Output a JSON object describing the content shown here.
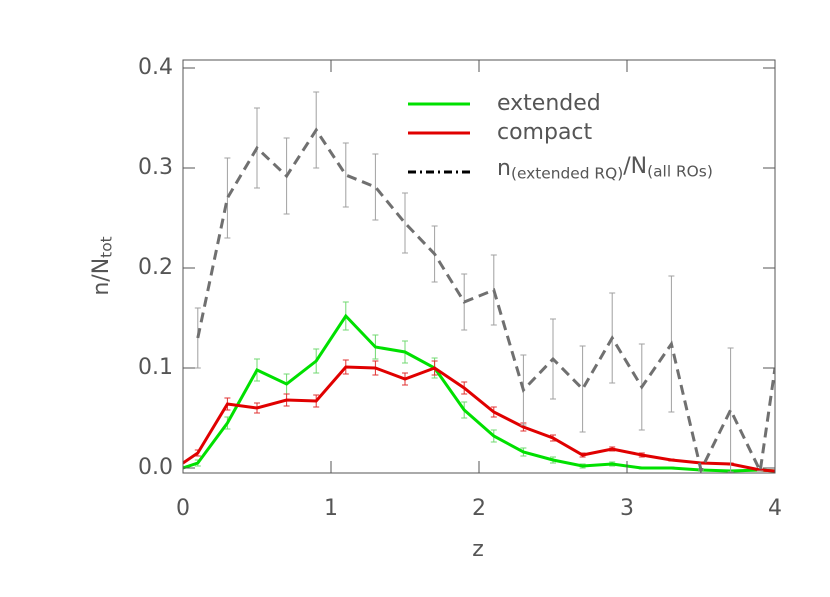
{
  "chart_data": {
    "type": "line",
    "xlabel": "z",
    "ylabel": [
      "n/N",
      "tot"
    ],
    "xlim": [
      0,
      4
    ],
    "ylim": [
      -0.005,
      0.408
    ],
    "xticks": [
      0,
      1,
      2,
      3,
      4
    ],
    "yticks": [
      {
        "value": 0,
        "label": "0.0"
      },
      0.1,
      0.2,
      0.3,
      0.4
    ],
    "x": [
      0,
      0.1,
      0.3,
      0.5,
      0.7,
      0.9,
      1.1,
      1.3,
      1.5,
      1.7,
      1.9,
      2.1,
      2.3,
      2.5,
      2.7,
      2.9,
      3.1,
      3.3,
      3.5,
      3.7,
      3.9,
      4.0
    ],
    "series": [
      {
        "name": "extended",
        "color": "#00e000",
        "dash": "solid",
        "errcolor": "#70d870",
        "values": [
          0.0,
          0.005,
          0.045,
          0.098,
          0.084,
          0.107,
          0.152,
          0.121,
          0.116,
          0.1,
          0.058,
          0.032,
          0.016,
          0.008,
          0.002,
          0.004,
          0.0,
          0.0,
          -0.002,
          -0.003,
          -0.002,
          -0.003
        ],
        "errors": [
          null,
          0.003,
          0.006,
          0.011,
          0.01,
          0.012,
          0.014,
          0.012,
          0.011,
          0.01,
          0.008,
          0.006,
          0.004,
          0.003,
          0.002,
          0.002,
          0.001,
          0.001,
          0.001,
          0.001,
          0.001,
          null
        ]
      },
      {
        "name": "compact",
        "color": "#e00000",
        "dash": "solid",
        "errcolor": "#e03030",
        "values": [
          0.005,
          0.015,
          0.064,
          0.06,
          0.068,
          0.067,
          0.101,
          0.1,
          0.089,
          0.1,
          0.08,
          0.056,
          0.041,
          0.03,
          0.013,
          0.019,
          0.013,
          0.008,
          0.005,
          0.004,
          -0.002,
          -0.003
        ],
        "errors": [
          null,
          0.003,
          0.006,
          0.005,
          0.006,
          0.006,
          0.007,
          0.007,
          0.006,
          0.007,
          0.006,
          0.005,
          0.004,
          0.003,
          0.002,
          0.002,
          0.002,
          0.001,
          0.001,
          0.001,
          0.001,
          null
        ]
      },
      {
        "name": [
          "n",
          "(extended RQ)",
          "/N",
          "(all ROs)"
        ],
        "color": "#707070",
        "dash": "dashed",
        "errcolor": "#a0a0a0",
        "legend_color": "#000000",
        "legend_dash": "dashdot",
        "values": [
          null,
          0.13,
          0.27,
          0.32,
          0.292,
          0.338,
          0.293,
          0.281,
          0.245,
          0.214,
          0.166,
          0.178,
          0.078,
          0.109,
          0.079,
          0.13,
          0.081,
          0.124,
          -0.002,
          0.058,
          -0.003,
          0.1
        ],
        "errors": [
          null,
          0.03,
          0.04,
          0.04,
          0.038,
          0.038,
          0.032,
          0.033,
          0.03,
          0.028,
          0.028,
          0.035,
          0.035,
          0.04,
          0.043,
          0.045,
          0.043,
          0.068,
          0,
          0.062,
          0,
          null
        ]
      }
    ]
  }
}
